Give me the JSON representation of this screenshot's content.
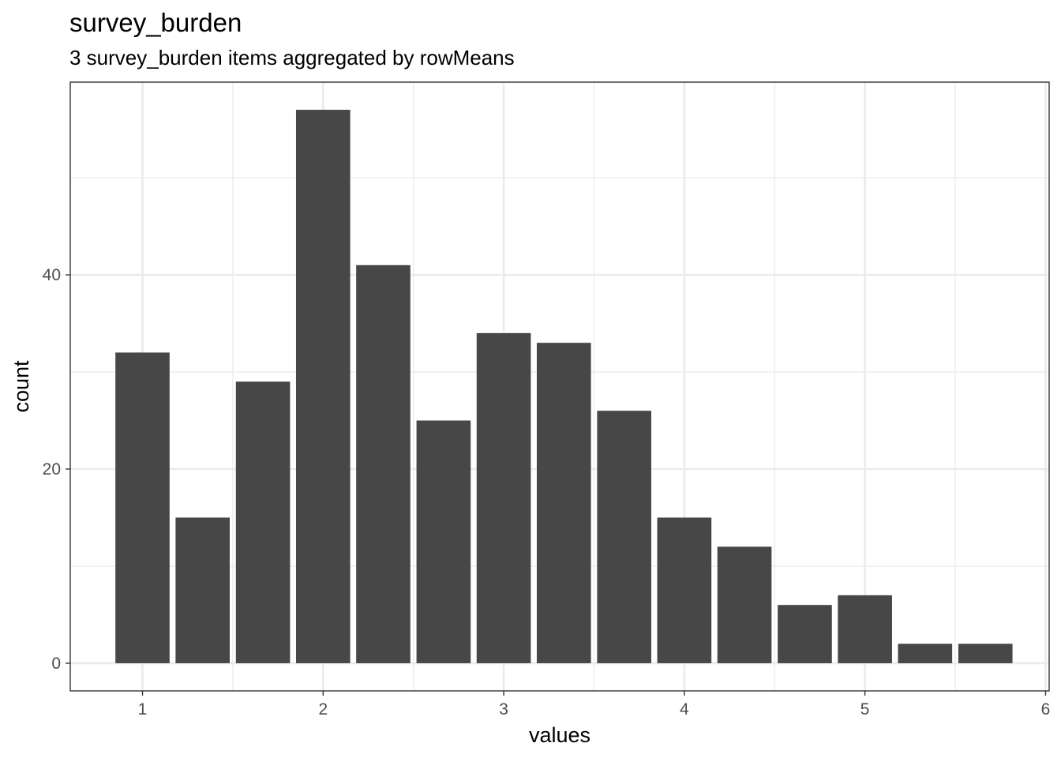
{
  "chart_data": {
    "type": "bar",
    "title": "survey_burden",
    "subtitle": "3 survey_burden items aggregated by rowMeans",
    "xlabel": "values",
    "ylabel": "count",
    "bins": [
      {
        "center": 1.0,
        "count": 32
      },
      {
        "center": 1.333,
        "count": 15
      },
      {
        "center": 1.667,
        "count": 29
      },
      {
        "center": 2.0,
        "count": 57
      },
      {
        "center": 2.333,
        "count": 41
      },
      {
        "center": 2.667,
        "count": 25
      },
      {
        "center": 3.0,
        "count": 34
      },
      {
        "center": 3.333,
        "count": 33
      },
      {
        "center": 3.667,
        "count": 26
      },
      {
        "center": 4.0,
        "count": 15
      },
      {
        "center": 4.333,
        "count": 12
      },
      {
        "center": 4.667,
        "count": 6
      },
      {
        "center": 5.0,
        "count": 7
      },
      {
        "center": 5.333,
        "count": 2
      },
      {
        "center": 5.667,
        "count": 2
      }
    ],
    "bar_width": 0.3,
    "xlim": [
      0.6,
      6.02
    ],
    "ylim": [
      -2.85,
      59.85
    ],
    "x_ticks": [
      1,
      2,
      3,
      4,
      5,
      6
    ],
    "x_tick_labels": [
      "1",
      "2",
      "3",
      "4",
      "5",
      "6"
    ],
    "x_minor_ticks": [
      1.5,
      2.5,
      3.5,
      4.5,
      5.5
    ],
    "y_ticks": [
      0,
      20,
      40
    ],
    "y_tick_labels": [
      "0",
      "20",
      "40"
    ],
    "y_minor_ticks": [
      10,
      30,
      50
    ],
    "grid": true,
    "bar_color": "#474747",
    "grid_color": "#ebebeb",
    "panel_border_color": "#333333"
  }
}
